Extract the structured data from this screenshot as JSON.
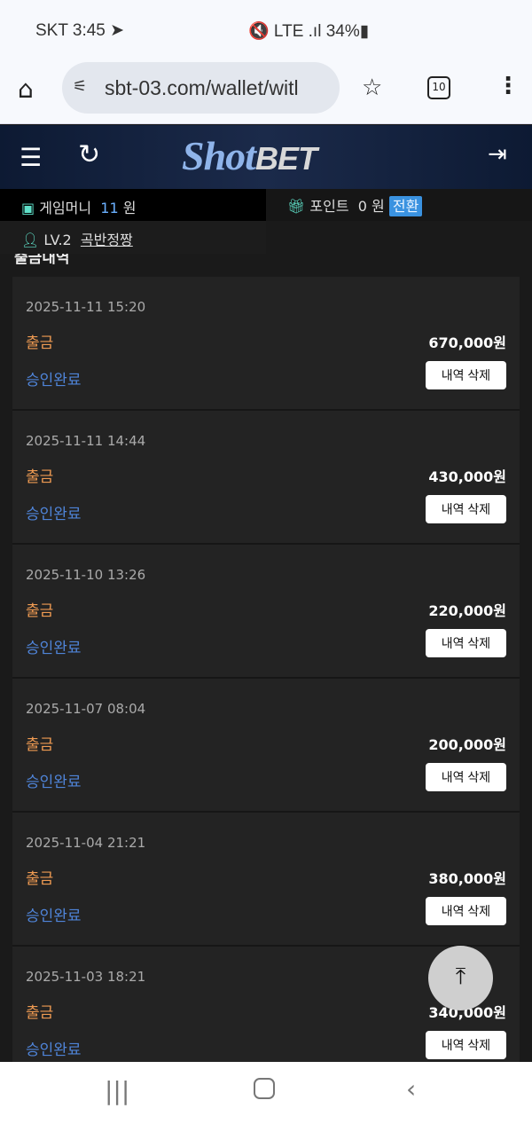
{
  "status_bar": {
    "carrier_time": "SKT 3:45 ➤",
    "indicators": "🔇 LTE .ıl 34%▮"
  },
  "browser": {
    "url": "sbt-03.com/wallet/witl",
    "tab_count": "10"
  },
  "header": {
    "logo": "ShotBET",
    "logo_script": "Shot",
    "logo_block": "BET"
  },
  "account": {
    "game_money_label": "게임머니",
    "game_money_value": "11",
    "game_money_unit": "원",
    "point_label": "포인트",
    "point_value": "0",
    "point_unit": "원",
    "convert_label": "전환",
    "level": "LV.2",
    "username": "곡반정짱"
  },
  "section_title": "출금내역",
  "records": [
    {
      "date": "2025-11-11 15:20",
      "type": "출금",
      "amount": "670,000원",
      "status": "승인완료",
      "delete_label": "내역 삭제"
    },
    {
      "date": "2025-11-11 14:44",
      "type": "출금",
      "amount": "430,000원",
      "status": "승인완료",
      "delete_label": "내역 삭제"
    },
    {
      "date": "2025-11-10 13:26",
      "type": "출금",
      "amount": "220,000원",
      "status": "승인완료",
      "delete_label": "내역 삭제"
    },
    {
      "date": "2025-11-07 08:04",
      "type": "출금",
      "amount": "200,000원",
      "status": "승인완료",
      "delete_label": "내역 삭제"
    },
    {
      "date": "2025-11-04 21:21",
      "type": "출금",
      "amount": "380,000원",
      "status": "승인완료",
      "delete_label": "내역 삭제"
    },
    {
      "date": "2025-11-03 18:21",
      "type": "출금",
      "amount": "340,000원",
      "status": "승인완료",
      "delete_label": "내역 삭제"
    }
  ],
  "colors": {
    "withdraw": "#ee9a52",
    "approved": "#4f84d8",
    "convert": "#3a92e0",
    "accent": "#5fe0c8"
  },
  "icons": [
    "home-icon",
    "tune-icon",
    "star-icon",
    "tabs-icon",
    "more-icon",
    "menu-icon",
    "refresh-icon",
    "logout-icon",
    "wallet-icon",
    "gift-icon",
    "user-icon",
    "scroll-top-icon",
    "recents-icon",
    "home-nav-icon",
    "back-icon"
  ]
}
